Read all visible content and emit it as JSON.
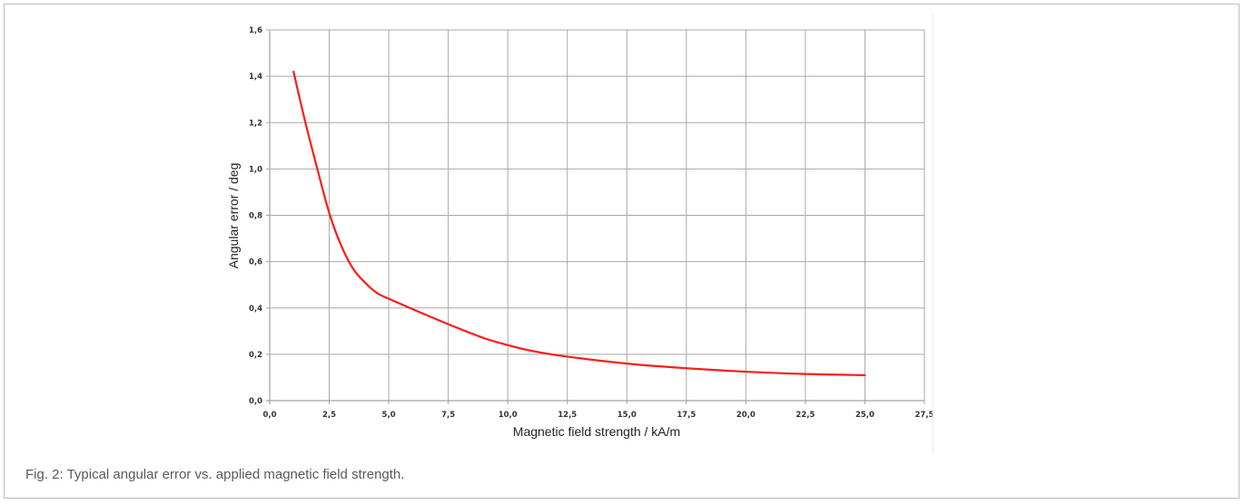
{
  "caption": "Fig. 2: Typical angular error vs. applied magnetic field strength.",
  "chart_data": {
    "type": "line",
    "title": "",
    "xlabel": "Magnetic field strength / kA/m",
    "ylabel": "Angular error / deg",
    "xlim": [
      0,
      27.5
    ],
    "ylim": [
      0,
      1.6
    ],
    "x_ticks": [
      0,
      2.5,
      5,
      7.5,
      10,
      12.5,
      15,
      17.5,
      20,
      22.5,
      25,
      27.5
    ],
    "x_tick_labels": [
      "0,0",
      "2,5",
      "5,0",
      "7,5",
      "10,0",
      "12,5",
      "15,0",
      "17,5",
      "20,0",
      "22,5",
      "25,0",
      "27,5"
    ],
    "y_ticks": [
      0,
      0.2,
      0.4,
      0.6,
      0.8,
      1.0,
      1.2,
      1.4,
      1.6
    ],
    "y_tick_labels": [
      "0,0",
      "0,2",
      "0,4",
      "0,6",
      "0,8",
      "1,0",
      "1,2",
      "1,4",
      "1,6"
    ],
    "grid": true,
    "series_color": "#ff1a1a",
    "series": [
      {
        "x": [
          1.0,
          1.5,
          2.0,
          2.5,
          3.0,
          3.5,
          4.0,
          4.5,
          5.0,
          6.0,
          7.5,
          9.0,
          10.0,
          11.0,
          12.5,
          15.0,
          17.5,
          20.0,
          22.5,
          25.0
        ],
        "y": [
          1.42,
          1.2,
          1.0,
          0.81,
          0.67,
          0.57,
          0.51,
          0.465,
          0.44,
          0.395,
          0.33,
          0.27,
          0.24,
          0.215,
          0.19,
          0.16,
          0.14,
          0.125,
          0.115,
          0.11
        ]
      }
    ]
  }
}
